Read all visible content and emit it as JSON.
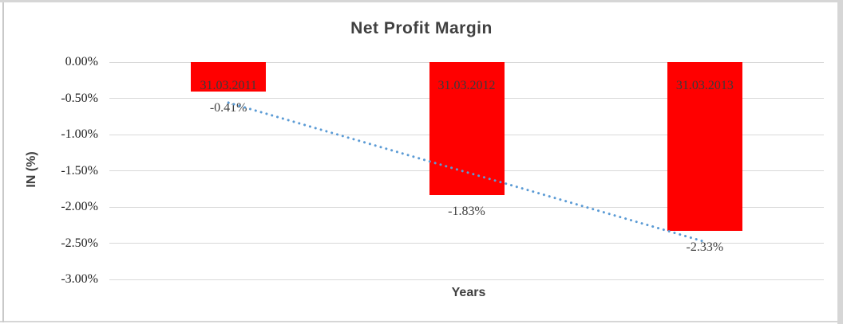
{
  "window": {
    "background": "#ffffff",
    "frame_color": "#d6d6d6"
  },
  "chart_data": {
    "type": "bar",
    "title": "Net Profit Margin",
    "xlabel": "Years",
    "ylabel": "IN (%)",
    "categories": [
      "31.03.2011",
      "31.03.2012",
      "31.03.2013"
    ],
    "series": [
      {
        "name": "Net Profit Margin",
        "values": [
          -0.41,
          -1.83,
          -2.33
        ]
      }
    ],
    "value_labels": [
      "-0.41%",
      "-1.83%",
      "-2.33%"
    ],
    "category_label_position": "inside-base",
    "value_label_position": "outside-end",
    "y_ticks": [
      {
        "label": "0.00%",
        "value": 0.0
      },
      {
        "label": "-0.50%",
        "value": -0.5
      },
      {
        "label": "-1.00%",
        "value": -1.0
      },
      {
        "label": "-1.50%",
        "value": -1.5
      },
      {
        "label": "-2.00%",
        "value": -2.0
      },
      {
        "label": "-2.50%",
        "value": -2.5
      },
      {
        "label": "-3.00%",
        "value": -3.0
      }
    ],
    "ylim": [
      -3.0,
      0.0
    ],
    "grid": true,
    "legend": "none",
    "bar_color": "#ff0000",
    "gridline_color": "#d9d9d9",
    "tick_color": "#1f1f1f",
    "label_color": "#404040",
    "title_color": "#404040",
    "trendline": {
      "type": "linear",
      "line_style": "dotted",
      "color": "#5b9bd5",
      "endpoint_values": [
        -0.56,
        -2.48
      ]
    }
  }
}
